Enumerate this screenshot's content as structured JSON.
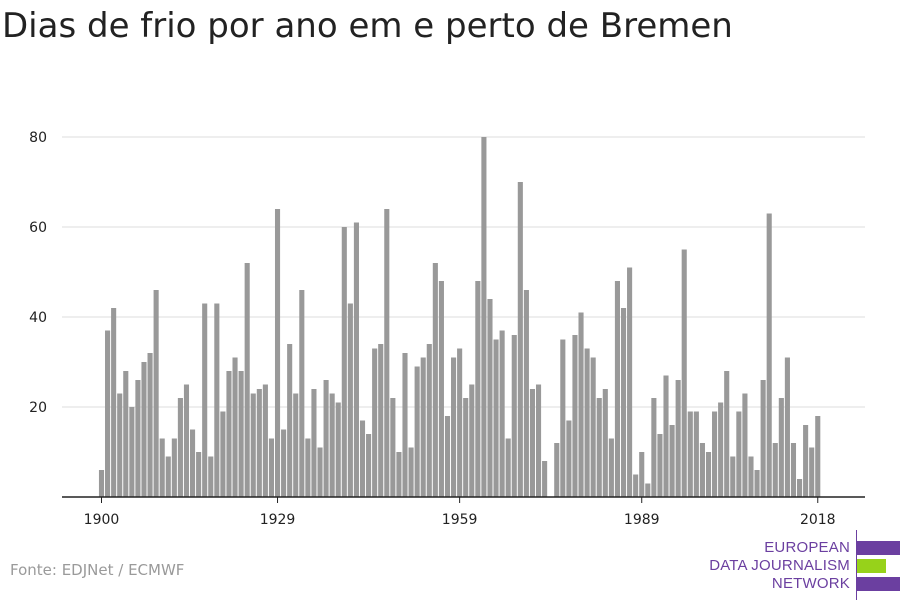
{
  "title": "Dias de frio por ano em e perto de Bremen",
  "source": "Fonte: EDJNet / ECMWF",
  "logo": {
    "line1": "EUROPEAN",
    "line2": "DATA JOURNALISM",
    "line3": "NETWORK"
  },
  "colors": {
    "bar": "#999999",
    "grid": "#dddddd",
    "axis": "#222222",
    "logo_purple": "#6b3fa0",
    "logo_green": "#97d21a",
    "source": "#9a9a9a"
  },
  "chart_data": {
    "type": "bar",
    "title": "Dias de frio por ano em e perto de Bremen",
    "xlabel": "",
    "ylabel": "",
    "ylim": [
      0,
      80
    ],
    "yticks": [
      20,
      40,
      60,
      80
    ],
    "xticks": [
      1900,
      1929,
      1959,
      1989,
      2018
    ],
    "grid": true,
    "x_start": 1900,
    "x_end": 2018,
    "values": [
      6,
      37,
      42,
      23,
      28,
      20,
      26,
      30,
      32,
      46,
      13,
      9,
      13,
      22,
      25,
      15,
      10,
      43,
      9,
      43,
      19,
      28,
      31,
      28,
      52,
      23,
      24,
      25,
      13,
      64,
      15,
      34,
      23,
      46,
      13,
      24,
      11,
      26,
      23,
      21,
      60,
      43,
      61,
      17,
      14,
      33,
      34,
      64,
      22,
      10,
      32,
      11,
      29,
      31,
      34,
      52,
      48,
      18,
      31,
      33,
      22,
      25,
      48,
      80,
      44,
      35,
      37,
      13,
      36,
      70,
      46,
      24,
      25,
      8,
      0,
      12,
      35,
      17,
      36,
      41,
      33,
      31,
      22,
      24,
      13,
      48,
      42,
      51,
      5,
      10,
      3,
      22,
      14,
      27,
      16,
      26,
      55,
      19,
      19,
      12,
      10,
      19,
      21,
      28,
      9,
      19,
      23,
      9,
      6,
      26,
      63,
      12,
      22,
      31,
      12,
      4,
      16,
      11,
      18
    ]
  }
}
